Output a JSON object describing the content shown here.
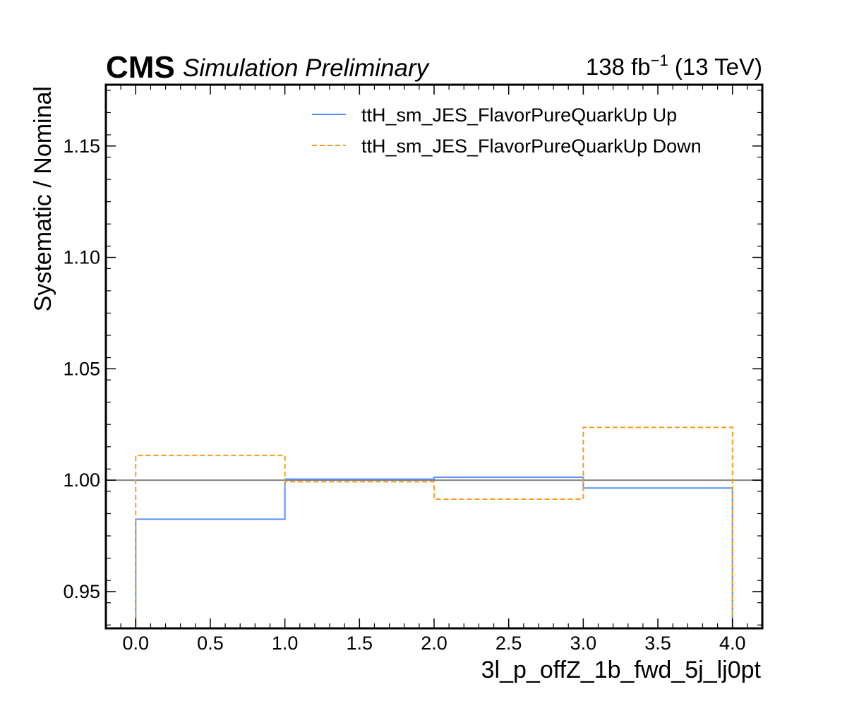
{
  "header": {
    "experiment": "CMS",
    "status": "Simulation Preliminary",
    "lumi_value": "138 fb",
    "lumi_exp": "−1",
    "lumi_energy": " (13 TeV)"
  },
  "chart_data": {
    "type": "line",
    "drawstyle": "step",
    "xlabel": "3l_p_offZ_1b_fwd_5j_lj0pt",
    "ylabel": "Systematic / Nominal",
    "xlim": [
      -0.2,
      4.2
    ],
    "ylim": [
      0.9335,
      1.1775
    ],
    "xticks": [
      0.0,
      0.5,
      1.0,
      1.5,
      2.0,
      2.5,
      3.0,
      3.5,
      4.0
    ],
    "xtick_labels": [
      "0.0",
      "0.5",
      "1.0",
      "1.5",
      "2.0",
      "2.5",
      "3.0",
      "3.5",
      "4.0"
    ],
    "yticks": [
      0.95,
      1.0,
      1.05,
      1.1,
      1.15
    ],
    "ytick_labels": [
      "0.95",
      "1.00",
      "1.05",
      "1.10",
      "1.15"
    ],
    "bin_edges": [
      0,
      1,
      2,
      3,
      4
    ],
    "reference_line": 1.0,
    "legend_position": "upper-right",
    "grid": false,
    "series": [
      {
        "name": "ttH_sm_JES_FlavorPureQuarkUp Up",
        "values": [
          0.9825,
          1.0005,
          1.0013,
          0.9965
        ],
        "color": "#5790fc",
        "dash": "solid"
      },
      {
        "name": "ttH_sm_JES_FlavorPureQuarkUp Down",
        "values": [
          1.0111,
          0.9993,
          0.9915,
          1.0237
        ],
        "color": "#f89c20",
        "dash": "dashed"
      }
    ],
    "reference_color": "#808080"
  }
}
